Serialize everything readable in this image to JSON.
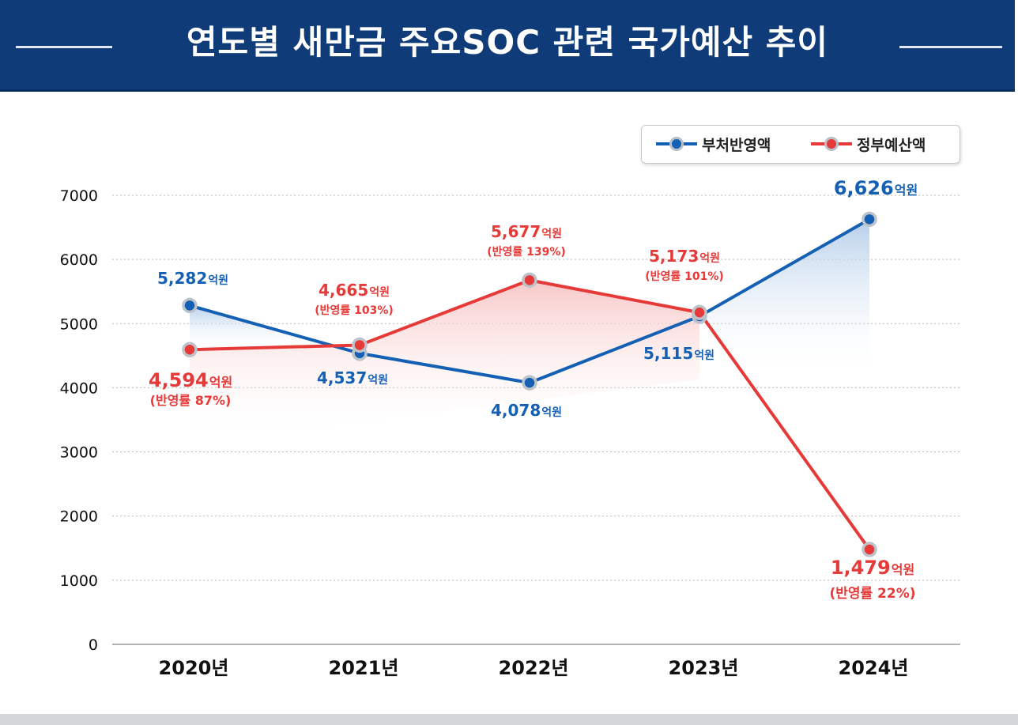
{
  "header": {
    "title": "연도별 새만금 주요SOC 관련 국가예산 추이"
  },
  "colors": {
    "banner": "#0f3b78",
    "blue": "#1460b4",
    "red": "#e63a38",
    "grid": "#b8b8b8"
  },
  "chart_data": {
    "type": "line",
    "categories": [
      "2020년",
      "2021년",
      "2022년",
      "2023년",
      "2024년"
    ],
    "ylim": [
      0,
      7000
    ],
    "yticks": [
      "0",
      "1000",
      "2000",
      "3000",
      "4000",
      "5000",
      "6000",
      "7000"
    ],
    "grid": true,
    "legend_position": "top-right",
    "series": [
      {
        "name": "부처반영액",
        "color": "#1460b4",
        "values": [
          5282,
          4537,
          4078,
          5115,
          6626
        ],
        "labels": [
          "5,282",
          "4,537",
          "4,078",
          "5,115",
          "6,626"
        ],
        "unit": "억원"
      },
      {
        "name": "정부예산액",
        "color": "#e63a38",
        "values": [
          4594,
          4665,
          5677,
          5173,
          1479
        ],
        "labels": [
          "4,594",
          "4,665",
          "5,677",
          "5,173",
          "1,479"
        ],
        "unit": "억원",
        "rates": [
          "(반영률 87%)",
          "(반영률 103%)",
          "(반영률 139%)",
          "(반영률 101%)",
          "(반영률 22%)"
        ]
      }
    ]
  }
}
